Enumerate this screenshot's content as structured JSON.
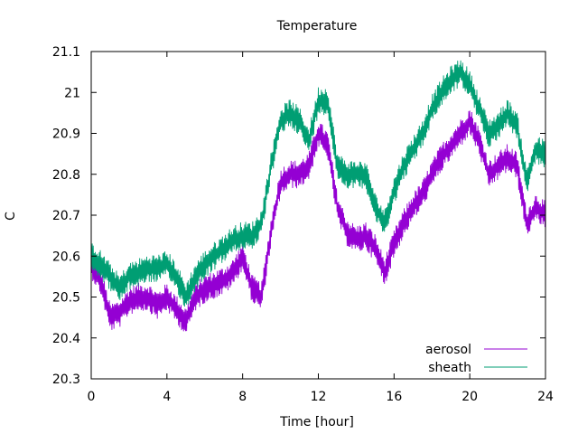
{
  "chart_data": {
    "type": "line",
    "title": "Temperature",
    "xlabel": "Time [hour]",
    "ylabel": "C",
    "xlim": [
      0,
      24
    ],
    "ylim": [
      20.3,
      21.1
    ],
    "xticks": [
      0,
      4,
      8,
      12,
      16,
      20,
      24
    ],
    "yticks": [
      20.3,
      20.4,
      20.5,
      20.6,
      20.7,
      20.8,
      20.9,
      21.0,
      21.1
    ],
    "ytick_labels": [
      "20.3",
      "20.4",
      "20.5",
      "20.6",
      "20.7",
      "20.8",
      "20.9",
      "21",
      "21.1"
    ],
    "grid": false,
    "legend_position": "bottom-right",
    "noise_amplitude": 0.035,
    "series": [
      {
        "name": "aerosol",
        "color": "#9400d3",
        "x": [
          0,
          0.5,
          1.0,
          1.5,
          2.0,
          2.5,
          3.0,
          3.5,
          4.0,
          4.5,
          5.0,
          5.5,
          6.0,
          6.5,
          7.0,
          7.5,
          8.0,
          8.5,
          9.0,
          9.5,
          10.0,
          10.5,
          11.0,
          11.5,
          12.0,
          12.5,
          13.0,
          13.5,
          14.0,
          14.5,
          15.0,
          15.5,
          16.0,
          16.5,
          17.0,
          17.5,
          18.0,
          18.5,
          19.0,
          19.5,
          20.0,
          20.5,
          21.0,
          21.5,
          22.0,
          22.5,
          23.0,
          23.5,
          24.0
        ],
        "y": [
          20.58,
          20.54,
          20.45,
          20.46,
          20.49,
          20.5,
          20.5,
          20.48,
          20.5,
          20.47,
          20.44,
          20.5,
          20.52,
          20.53,
          20.54,
          20.56,
          20.6,
          20.52,
          20.5,
          20.66,
          20.78,
          20.8,
          20.8,
          20.82,
          20.9,
          20.87,
          20.72,
          20.66,
          20.64,
          20.65,
          20.62,
          20.56,
          20.63,
          20.68,
          20.72,
          20.75,
          20.8,
          20.84,
          20.87,
          20.9,
          20.93,
          20.88,
          20.8,
          20.82,
          20.84,
          20.82,
          20.68,
          20.72,
          20.7
        ]
      },
      {
        "name": "sheath",
        "color": "#009e73",
        "x": [
          0,
          0.5,
          1.0,
          1.5,
          2.0,
          2.5,
          3.0,
          3.5,
          4.0,
          4.5,
          5.0,
          5.5,
          6.0,
          6.5,
          7.0,
          7.5,
          8.0,
          8.5,
          9.0,
          9.5,
          10.0,
          10.5,
          11.0,
          11.5,
          12.0,
          12.5,
          13.0,
          13.5,
          14.0,
          14.5,
          15.0,
          15.5,
          16.0,
          16.5,
          17.0,
          17.5,
          18.0,
          18.5,
          19.0,
          19.5,
          20.0,
          20.5,
          21.0,
          21.5,
          22.0,
          22.5,
          23.0,
          23.5,
          24.0
        ],
        "y": [
          20.6,
          20.58,
          20.55,
          20.52,
          20.55,
          20.56,
          20.57,
          20.57,
          20.58,
          20.55,
          20.5,
          20.55,
          20.58,
          20.6,
          20.62,
          20.64,
          20.65,
          20.65,
          20.68,
          20.82,
          20.93,
          20.95,
          20.93,
          20.88,
          20.98,
          20.98,
          20.82,
          20.8,
          20.8,
          20.8,
          20.72,
          20.68,
          20.76,
          20.82,
          20.86,
          20.9,
          20.96,
          21.0,
          21.03,
          21.05,
          21.02,
          20.96,
          20.9,
          20.92,
          20.95,
          20.92,
          20.78,
          20.86,
          20.85
        ]
      }
    ]
  }
}
